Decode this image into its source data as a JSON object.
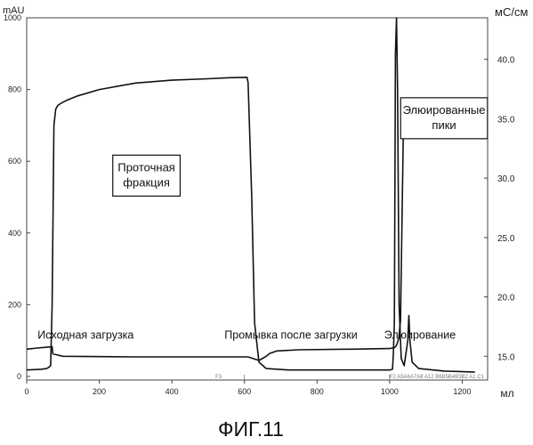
{
  "chart_data": {
    "type": "line",
    "title": "",
    "caption": "ФИГ.11",
    "xlabel": "мл",
    "ylabel_left": "mAU",
    "ylabel_right": "мС/см",
    "xlim": [
      0,
      1270
    ],
    "ylim_left": [
      -10,
      1000
    ],
    "ylim_right": [
      13,
      43.5
    ],
    "x_ticks": [
      0,
      200,
      400,
      600,
      800,
      1000,
      1200
    ],
    "y_left_ticks": [
      0,
      200,
      400,
      600,
      800,
      1000
    ],
    "y_right_ticks": [
      15.0,
      20.0,
      25.0,
      30.0,
      35.0,
      40.0
    ],
    "y_left_tick_labels": [
      "0",
      "200",
      "400",
      "600",
      "800",
      "1000"
    ],
    "y_right_tick_labels": [
      "15.0",
      "20.0",
      "25.0",
      "30.0",
      "35.0",
      "40.0"
    ],
    "grid": false,
    "fraction_labels": [
      "F3",
      "F2 A5A6A7A8 A12 B6B5B4B3B2 A1 C1"
    ],
    "series": [
      {
        "axis": "left",
        "points": [
          [
            0,
            18
          ],
          [
            40,
            20
          ],
          [
            55,
            22
          ],
          [
            60,
            25
          ],
          [
            66,
            30
          ],
          [
            70,
            200
          ],
          [
            75,
            700
          ],
          [
            80,
            745
          ],
          [
            85,
            755
          ],
          [
            95,
            762
          ],
          [
            110,
            770
          ],
          [
            140,
            782
          ],
          [
            200,
            800
          ],
          [
            300,
            818
          ],
          [
            400,
            826
          ],
          [
            500,
            830
          ],
          [
            560,
            833
          ],
          [
            607,
            834
          ],
          [
            610,
            820
          ],
          [
            620,
            500
          ],
          [
            628,
            150
          ],
          [
            640,
            40
          ],
          [
            660,
            22
          ],
          [
            720,
            18
          ],
          [
            900,
            18
          ],
          [
            1000,
            18
          ],
          [
            1008,
            20
          ],
          [
            1010,
            60
          ],
          [
            1013,
            150
          ],
          [
            1016,
            900
          ],
          [
            1019,
            1000
          ],
          [
            1022,
            800
          ],
          [
            1026,
            200
          ],
          [
            1032,
            50
          ],
          [
            1040,
            30
          ],
          [
            1050,
            100
          ],
          [
            1053,
            170
          ],
          [
            1056,
            100
          ],
          [
            1062,
            40
          ],
          [
            1080,
            22
          ],
          [
            1150,
            15
          ],
          [
            1235,
            12
          ]
        ]
      },
      {
        "axis": "right",
        "points": [
          [
            0,
            15.6
          ],
          [
            30,
            15.7
          ],
          [
            70,
            15.8
          ],
          [
            72,
            15.2
          ],
          [
            100,
            15.0
          ],
          [
            300,
            14.95
          ],
          [
            500,
            14.95
          ],
          [
            610,
            14.95
          ],
          [
            625,
            14.8
          ],
          [
            640,
            14.65
          ],
          [
            660,
            15.0
          ],
          [
            670,
            15.25
          ],
          [
            690,
            15.45
          ],
          [
            750,
            15.55
          ],
          [
            900,
            15.6
          ],
          [
            1000,
            15.65
          ],
          [
            1015,
            15.75
          ],
          [
            1020,
            16.0
          ],
          [
            1025,
            16.5
          ],
          [
            1030,
            18.0
          ],
          [
            1038,
            34.5
          ],
          [
            1045,
            35.6
          ],
          [
            1100,
            35.6
          ],
          [
            1200,
            35.7
          ],
          [
            1235,
            35.7
          ]
        ]
      }
    ],
    "annotations": [
      {
        "text": "Исходная загрузка",
        "x": 30,
        "y": 105
      },
      {
        "text": "Промывка после загрузки",
        "x": 545,
        "y": 105
      },
      {
        "text": "Элюирование",
        "x": 985,
        "y": 105
      }
    ],
    "boxed_labels": [
      {
        "lines": [
          "Проточная",
          "фракция"
        ],
        "x": 330,
        "y": 560
      },
      {
        "lines": [
          "Элюированные",
          "пики"
        ],
        "x": 1150,
        "y": 720
      }
    ]
  }
}
